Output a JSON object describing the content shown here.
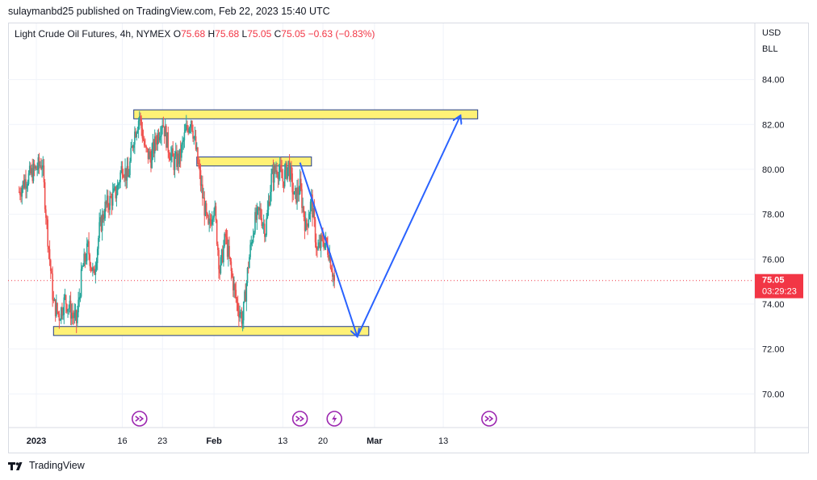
{
  "header": {
    "published": "sulaymanbd25 published on TradingView.com, Feb 22, 2023 15:40 UTC"
  },
  "legend": {
    "symbol": "Light Crude Oil Futures, 4h, NYMEX",
    "o_label": "O",
    "o_value": "75.68",
    "h_label": "H",
    "h_value": "75.68",
    "l_label": "L",
    "l_value": "75.05",
    "c_label": "C",
    "c_value": "75.05",
    "change": "−0.63 (−0.83%)"
  },
  "footer": {
    "brand": "TradingView"
  },
  "colors": {
    "up": "#26a69a",
    "down": "#ef5350",
    "zone_fill": "#fff176",
    "zone_stroke": "#1e3a8a",
    "arrow": "#2962ff",
    "price_tag": "#f23645",
    "event_icon": "#9c27b0",
    "grid": "#f0f3fa"
  },
  "chart_data": {
    "type": "candlestick",
    "timeframe": "4h",
    "currency_labels": [
      "USD",
      "BLL"
    ],
    "ylim": [
      68.5,
      86.5
    ],
    "y_ticks": [
      "84.00",
      "82.00",
      "80.00",
      "78.00",
      "76.00",
      "74.00",
      "72.00",
      "70.00"
    ],
    "x_ticks": [
      "2023",
      "16",
      "23",
      "Feb",
      "13",
      "20",
      "Mar",
      "13"
    ],
    "last_price": "75.05",
    "countdown": "03:29:23",
    "price_path": [
      [
        "2022-12-29",
        79.0
      ],
      [
        "2022-12-30",
        79.5
      ],
      [
        "2023-01-02",
        80.3
      ],
      [
        "2023-01-03",
        77.0
      ],
      [
        "2023-01-04",
        74.0
      ],
      [
        "2023-01-05",
        73.5
      ],
      [
        "2023-01-06",
        74.2
      ],
      [
        "2023-01-08",
        73.2
      ],
      [
        "2023-01-09",
        75.5
      ],
      [
        "2023-01-10",
        76.5
      ],
      [
        "2023-01-11",
        75.2
      ],
      [
        "2023-01-12",
        77.3
      ],
      [
        "2023-01-13",
        78.3
      ],
      [
        "2023-01-15",
        79.0
      ],
      [
        "2023-01-16",
        80.2
      ],
      [
        "2023-01-17",
        79.6
      ],
      [
        "2023-01-18",
        81.5
      ],
      [
        "2023-01-19",
        82.4
      ],
      [
        "2023-01-20",
        80.8
      ],
      [
        "2023-01-21",
        80.5
      ],
      [
        "2023-01-22",
        81.4
      ],
      [
        "2023-01-23",
        82.2
      ],
      [
        "2023-01-24",
        81.0
      ],
      [
        "2023-01-25",
        80.3
      ],
      [
        "2023-01-26",
        80.5
      ],
      [
        "2023-01-27",
        81.6
      ],
      [
        "2023-01-28",
        82.3
      ],
      [
        "2023-01-29",
        80.6
      ],
      [
        "2023-01-30",
        78.8
      ],
      [
        "2023-01-31",
        77.3
      ],
      [
        "2023-02-01",
        78.5
      ],
      [
        "2023-02-02",
        75.5
      ],
      [
        "2023-02-03",
        77.0
      ],
      [
        "2023-02-04",
        75.4
      ],
      [
        "2023-02-05",
        74.0
      ],
      [
        "2023-02-06",
        73.3
      ],
      [
        "2023-02-07",
        75.8
      ],
      [
        "2023-02-08",
        77.6
      ],
      [
        "2023-02-09",
        78.1
      ],
      [
        "2023-02-10",
        77.3
      ],
      [
        "2023-02-11",
        79.6
      ],
      [
        "2023-02-12",
        80.1
      ],
      [
        "2023-02-13",
        79.5
      ],
      [
        "2023-02-14",
        80.2
      ],
      [
        "2023-02-15",
        78.7
      ],
      [
        "2023-02-16",
        79.2
      ],
      [
        "2023-02-17",
        77.4
      ],
      [
        "2023-02-18",
        78.6
      ],
      [
        "2023-02-19",
        76.3
      ],
      [
        "2023-02-20",
        76.9
      ],
      [
        "2023-02-21",
        76.4
      ],
      [
        "2023-02-22",
        75.05
      ]
    ],
    "zones": [
      {
        "from": "2023-01-18",
        "to": "2023-03-19",
        "low": 82.25,
        "high": 82.65
      },
      {
        "from": "2023-01-29",
        "to": "2023-02-18",
        "low": 80.15,
        "high": 80.55
      },
      {
        "from": "2023-01-04",
        "to": "2023-02-28",
        "low": 72.6,
        "high": 73.0
      }
    ],
    "arrows": [
      {
        "from": [
          "2023-02-16",
          80.3
        ],
        "to": [
          "2023-02-26",
          72.55
        ]
      },
      {
        "from": [
          "2023-02-26",
          72.55
        ],
        "to": [
          "2023-03-16",
          82.4
        ]
      }
    ],
    "events": [
      {
        "date": "2023-01-19",
        "kind": "split"
      },
      {
        "date": "2023-02-16",
        "kind": "split"
      },
      {
        "date": "2023-02-22",
        "kind": "flash"
      },
      {
        "date": "2023-03-21",
        "kind": "split"
      }
    ]
  }
}
